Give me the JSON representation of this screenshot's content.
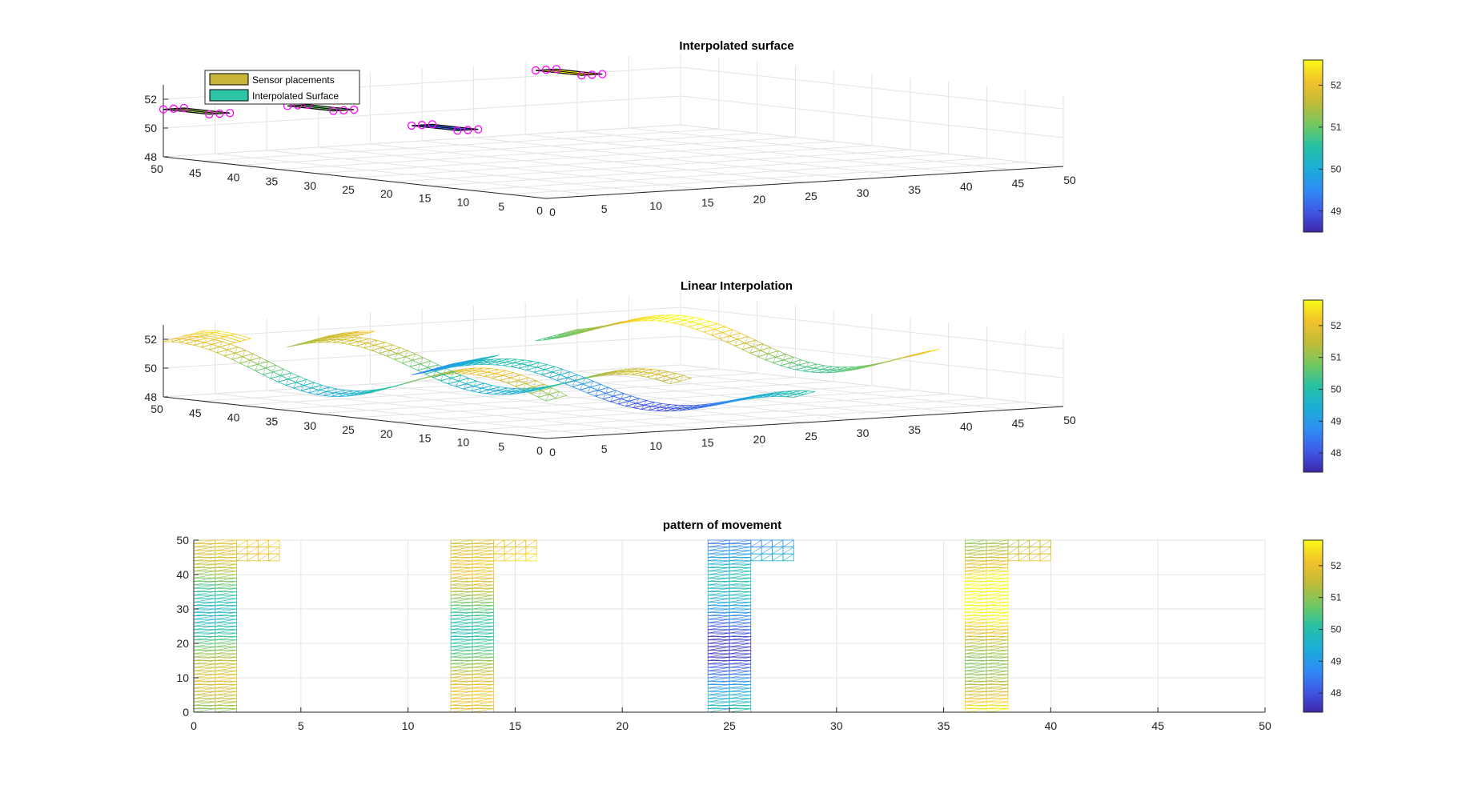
{
  "colormap": [
    "#3e26a8",
    "#3f5ae8",
    "#2f8ef4",
    "#1aafd6",
    "#27c1a3",
    "#73c761",
    "#c0bc37",
    "#f2c12c",
    "#f9fb15"
  ],
  "chart_data": [
    {
      "type": "surface3d",
      "title": "Interpolated surface",
      "legend": {
        "entries": [
          "Sensor placements",
          "Interpolated Surface"
        ],
        "colors": [
          "#c8b53a",
          "#2cc4a4"
        ],
        "placement": "top-left"
      },
      "xlim": [
        0,
        50
      ],
      "ylim": [
        0,
        50
      ],
      "zlim": [
        48,
        53
      ],
      "xticks": [
        "0",
        "5",
        "10",
        "15",
        "20",
        "25",
        "30",
        "35",
        "40",
        "45",
        "50"
      ],
      "yticks": [
        "0",
        "5",
        "10",
        "15",
        "20",
        "25",
        "30",
        "35",
        "40",
        "45",
        "50"
      ],
      "zticks": [
        "48",
        "50",
        "52"
      ],
      "colorbar": {
        "ticks": [
          "49",
          "50",
          "51",
          "52"
        ],
        "range": [
          48.5,
          52.6
        ]
      },
      "sensor_patches": [
        {
          "x": [
            0,
            2
          ],
          "y": [
            44,
            50
          ],
          "z": 51.3
        },
        {
          "x": [
            12,
            14
          ],
          "y": [
            44,
            50
          ],
          "z": 51.0
        },
        {
          "x": [
            24,
            26
          ],
          "y": [
            44,
            50
          ],
          "z": 49.1
        },
        {
          "x": [
            36,
            38
          ],
          "y": [
            44,
            50
          ],
          "z": 52.4
        }
      ],
      "grid": true
    },
    {
      "type": "mesh3d",
      "title": "Linear Interpolation",
      "xlim": [
        0,
        50
      ],
      "ylim": [
        0,
        50
      ],
      "zlim": [
        48,
        53
      ],
      "xticks": [
        "0",
        "5",
        "10",
        "15",
        "20",
        "25",
        "30",
        "35",
        "40",
        "45",
        "50"
      ],
      "yticks": [
        "0",
        "5",
        "10",
        "15",
        "20",
        "25",
        "30",
        "35",
        "40",
        "45",
        "50"
      ],
      "zticks": [
        "48",
        "50",
        "52"
      ],
      "colorbar": {
        "ticks": [
          "48",
          "49",
          "50",
          "51",
          "52"
        ],
        "range": [
          47.4,
          52.8
        ]
      },
      "series": [
        {
          "x_start": 0,
          "z_mean": 50.6,
          "z_amp": 1.3
        },
        {
          "x_start": 12,
          "z_mean": 50.4,
          "z_amp": 1.2
        },
        {
          "x_start": 24,
          "z_mean": 48.8,
          "z_amp": 1.0
        },
        {
          "x_start": 36,
          "z_mean": 51.4,
          "z_amp": 1.2
        }
      ],
      "grid": true
    },
    {
      "type": "heatmap",
      "title": "pattern of movement",
      "xlim": [
        0,
        50
      ],
      "ylim": [
        0,
        50
      ],
      "xticks": [
        "0",
        "5",
        "10",
        "15",
        "20",
        "25",
        "30",
        "35",
        "40",
        "45",
        "50"
      ],
      "yticks": [
        "0",
        "10",
        "20",
        "30",
        "40",
        "50"
      ],
      "colorbar": {
        "ticks": [
          "48",
          "49",
          "50",
          "51",
          "52"
        ],
        "range": [
          47.4,
          52.8
        ]
      },
      "shapes": [
        {
          "x_start": 0,
          "mean": 50.6
        },
        {
          "x_start": 12,
          "mean": 50.9
        },
        {
          "x_start": 24,
          "mean": 48.6
        },
        {
          "x_start": 36,
          "mean": 51.9
        }
      ],
      "grid": true
    }
  ]
}
